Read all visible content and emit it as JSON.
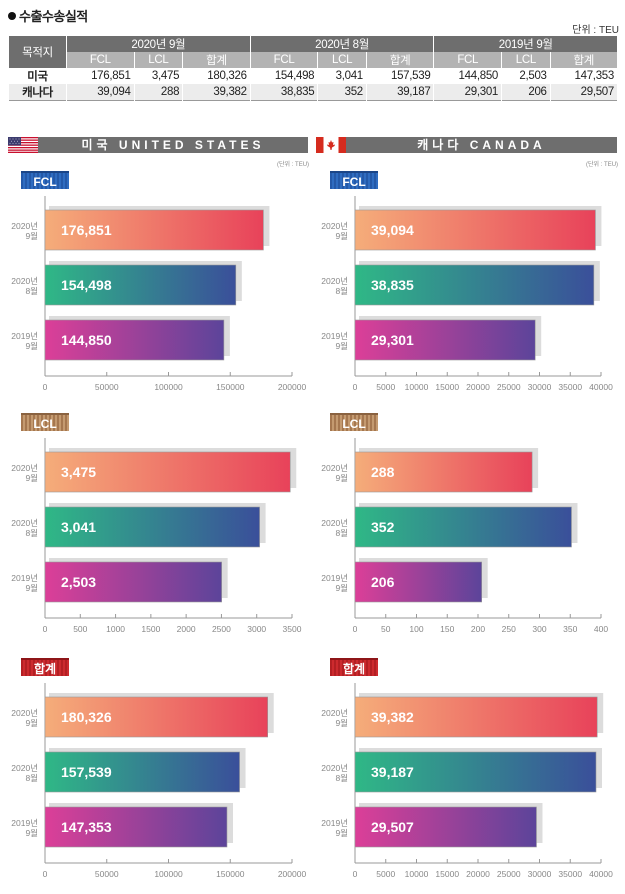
{
  "title": "수출수송실적",
  "unit_top": "단위 : TEU",
  "table": {
    "dest_header": "목적지",
    "periods": [
      "2020년 9월",
      "2020년 8월",
      "2019년 9월"
    ],
    "sub_headers": [
      "FCL",
      "LCL",
      "합계",
      "FCL",
      "LCL",
      "합계",
      "FCL",
      "LCL",
      "합계"
    ],
    "rows": [
      {
        "name": "미국",
        "values": [
          "176,851",
          "3,475",
          "180,326",
          "154,498",
          "3,041",
          "157,539",
          "144,850",
          "2,503",
          "147,353"
        ]
      },
      {
        "name": "캐나다",
        "values": [
          "39,094",
          "288",
          "39,382",
          "38,835",
          "352",
          "39,187",
          "29,301",
          "206",
          "29,507"
        ]
      }
    ]
  },
  "panels": {
    "us": {
      "label": "미국 UNITED STATES",
      "unit": "(단위 : TEU)",
      "flag": "us-flag"
    },
    "ca": {
      "label": "캐나다 CANADA",
      "unit": "(단위 : TEU)",
      "flag": "canada-flag"
    }
  },
  "colors": {
    "grad_2020_9": [
      "#f5ad7a",
      "#e8425a"
    ],
    "grad_2020_8": [
      "#2fb886",
      "#3a4f9a"
    ],
    "grad_2019_9": [
      "#dc3f98",
      "#5c449a"
    ],
    "shadow": "#dcdcdc",
    "axis": "#999999"
  },
  "chart_data": [
    {
      "id": "us-fcl",
      "type": "bar",
      "badge": "FCL",
      "country": "미국",
      "categories": [
        [
          "2020년",
          "9월"
        ],
        [
          "2020년",
          "8월"
        ],
        [
          "2019년",
          "9월"
        ]
      ],
      "values": [
        176851,
        154498,
        144850
      ],
      "labels": [
        "176,851",
        "154,498",
        "144,850"
      ],
      "xlim": [
        0,
        200000
      ],
      "ticks": [
        0,
        50000,
        100000,
        150000,
        200000
      ]
    },
    {
      "id": "ca-fcl",
      "type": "bar",
      "badge": "FCL",
      "country": "캐나다",
      "categories": [
        [
          "2020년",
          "9월"
        ],
        [
          "2020년",
          "8월"
        ],
        [
          "2019년",
          "9월"
        ]
      ],
      "values": [
        39094,
        38835,
        29301
      ],
      "labels": [
        "39,094",
        "38,835",
        "29,301"
      ],
      "xlim": [
        0,
        40000
      ],
      "ticks": [
        0,
        5000,
        10000,
        15000,
        20000,
        25000,
        30000,
        35000,
        40000
      ]
    },
    {
      "id": "us-lcl",
      "type": "bar",
      "badge": "LCL",
      "country": "미국",
      "categories": [
        [
          "2020년",
          "9월"
        ],
        [
          "2020년",
          "8월"
        ],
        [
          "2019년",
          "9월"
        ]
      ],
      "values": [
        3475,
        3041,
        2503
      ],
      "labels": [
        "3,475",
        "3,041",
        "2,503"
      ],
      "xlim": [
        0,
        3500
      ],
      "ticks": [
        0,
        500,
        1000,
        1500,
        2000,
        2500,
        3000,
        3500
      ]
    },
    {
      "id": "ca-lcl",
      "type": "bar",
      "badge": "LCL",
      "country": "캐나다",
      "categories": [
        [
          "2020년",
          "9월"
        ],
        [
          "2020년",
          "8월"
        ],
        [
          "2019년",
          "9월"
        ]
      ],
      "values": [
        288,
        352,
        206
      ],
      "labels": [
        "288",
        "352",
        "206"
      ],
      "xlim": [
        0,
        400
      ],
      "ticks": [
        0,
        50,
        100,
        150,
        200,
        250,
        300,
        350,
        400
      ]
    },
    {
      "id": "us-total",
      "type": "bar",
      "badge": "합계",
      "country": "미국",
      "categories": [
        [
          "2020년",
          "9월"
        ],
        [
          "2020년",
          "8월"
        ],
        [
          "2019년",
          "9월"
        ]
      ],
      "values": [
        180326,
        157539,
        147353
      ],
      "labels": [
        "180,326",
        "157,539",
        "147,353"
      ],
      "xlim": [
        0,
        200000
      ],
      "ticks": [
        0,
        50000,
        100000,
        150000,
        200000
      ]
    },
    {
      "id": "ca-total",
      "type": "bar",
      "badge": "합계",
      "country": "캐나다",
      "categories": [
        [
          "2020년",
          "9월"
        ],
        [
          "2020년",
          "8월"
        ],
        [
          "2019년",
          "9월"
        ]
      ],
      "values": [
        39382,
        39187,
        29507
      ],
      "labels": [
        "39,382",
        "39,187",
        "29,507"
      ],
      "xlim": [
        0,
        40000
      ],
      "ticks": [
        0,
        5000,
        10000,
        15000,
        20000,
        25000,
        30000,
        35000,
        40000
      ]
    }
  ]
}
